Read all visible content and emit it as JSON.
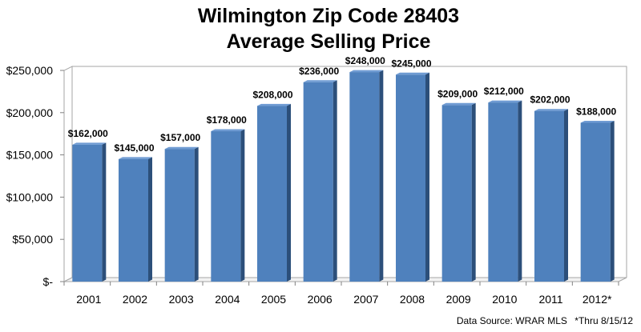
{
  "chart_data": {
    "type": "bar",
    "title": "Wilmington Zip Code 28403",
    "subtitle": "Average Selling Price",
    "categories": [
      "2001",
      "2002",
      "2003",
      "2004",
      "2005",
      "2006",
      "2007",
      "2008",
      "2009",
      "2010",
      "2011",
      "2012*"
    ],
    "values": [
      162000,
      145000,
      157000,
      178000,
      208000,
      236000,
      248000,
      245000,
      209000,
      212000,
      202000,
      188000
    ],
    "data_labels": [
      "$162,000",
      "$145,000",
      "$157,000",
      "$178,000",
      "$208,000",
      "$236,000",
      "$248,000",
      "$245,000",
      "$209,000",
      "$212,000",
      "$202,000",
      "$188,000"
    ],
    "y_ticks": [
      {
        "value": 0,
        "label": "$-"
      },
      {
        "value": 50000,
        "label": "$50,000"
      },
      {
        "value": 100000,
        "label": "$100,000"
      },
      {
        "value": 150000,
        "label": "$150,000"
      },
      {
        "value": 200000,
        "label": "$200,000"
      },
      {
        "value": 250000,
        "label": "$250,000"
      }
    ],
    "ylim": [
      0,
      250000
    ],
    "xlabel": "",
    "ylabel": "",
    "grid": false,
    "legend": "none",
    "bar_color": "#4f81bd",
    "bar_side_color": "#2c4f7a"
  },
  "source_note": "Data Source: WRAR MLS",
  "source_footnote": "*Thru 8/15/12"
}
